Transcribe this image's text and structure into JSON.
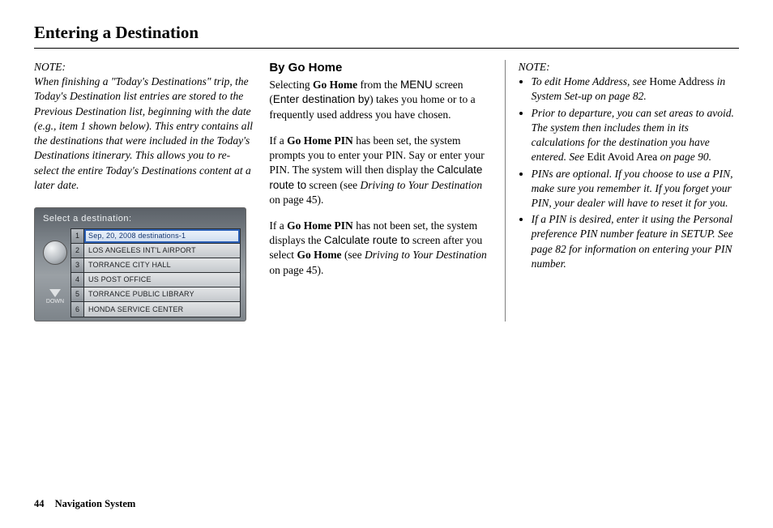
{
  "page": {
    "title": "Entering a Destination",
    "number": "44",
    "section": "Navigation System"
  },
  "col1": {
    "noteLabel": "NOTE:",
    "noteBody": "When finishing a \"Today's Destinations\" trip, the Today's Destination list entries are stored to the Previous Destination list, beginning with the date (e.g., item 1 shown below). This entry contains all the destinations that were included in the Today's Destinations itinerary. This allows you to re-select the entire Today's Destinations content at a later date."
  },
  "screenshot": {
    "title": "Select a destination:",
    "downLabel": "DOWN",
    "rows": [
      {
        "n": "1",
        "text": "Sep, 20, 2008 destinations-1",
        "highlight": true,
        "upper": false
      },
      {
        "n": "2",
        "text": "LOS ANGELES INT'L AIRPORT",
        "highlight": false,
        "upper": true
      },
      {
        "n": "3",
        "text": "TORRANCE CITY HALL",
        "highlight": false,
        "upper": true
      },
      {
        "n": "4",
        "text": "US POST OFFICE",
        "highlight": false,
        "upper": true
      },
      {
        "n": "5",
        "text": "TORRANCE PUBLIC LIBRARY",
        "highlight": false,
        "upper": true
      },
      {
        "n": "6",
        "text": "HONDA SERVICE CENTER",
        "highlight": false,
        "upper": true
      }
    ]
  },
  "col2": {
    "heading": "By Go Home",
    "p1_a": "Selecting ",
    "p1_b": "Go Home",
    "p1_c": " from the ",
    "p1_d": "MENU",
    "p1_e": " screen (",
    "p1_f": "Enter destination by",
    "p1_g": ") takes you home or to a frequently used address you have chosen.",
    "p2_a": "If a ",
    "p2_b": "Go Home PIN",
    "p2_c": " has been set, the system prompts you to enter your PIN. Say or enter your PIN. The system will then display the ",
    "p2_d": "Calculate route to",
    "p2_e": " screen (see ",
    "p2_f": "Driving to Your Destination",
    "p2_g": " on page 45).",
    "p3_a": "If a ",
    "p3_b": "Go Home PIN",
    "p3_c": " has not been set, the system displays the ",
    "p3_d": "Calculate route to",
    "p3_e": " screen after you select ",
    "p3_f": "Go Home",
    "p3_g": " (see ",
    "p3_h": "Driving to Your Destination",
    "p3_i": " on page 45)."
  },
  "col3": {
    "noteLabel": "NOTE:",
    "b1_a": "To edit Home Address, see ",
    "b1_b": "Home Address",
    "b1_c": " in System Set-up on page 82.",
    "b2_a": "Prior to departure, you can set areas to avoid. The system then includes them in its calculations for the destination you have entered. See ",
    "b2_b": "Edit Avoid Area",
    "b2_c": " on page 90.",
    "b3": "PINs are optional. If you choose to use a PIN, make sure you remember it. If you forget your PIN, your dealer will have to reset it for you.",
    "b4": "If a PIN is desired, enter it using the Personal preference PIN number feature in SETUP. See page 82 for information on entering your PIN number."
  }
}
